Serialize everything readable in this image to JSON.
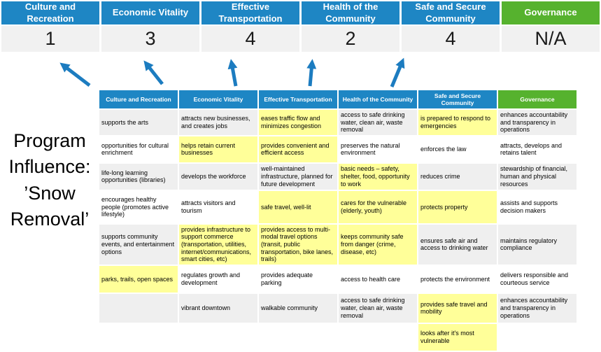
{
  "colors": {
    "blue": "#1e86c4",
    "green": "#56b22e",
    "highlight": "#ffff99",
    "row_alt": "#efefef",
    "score_bg": "#f1f1f1",
    "arrow": "#1c7cc0"
  },
  "program_label": "Program\nInfluence:\n’Snow\nRemoval’",
  "scoreboard": {
    "columns": [
      {
        "label": "Culture and\nRecreation",
        "score": "1",
        "accent": "blue"
      },
      {
        "label": "Economic Vitality",
        "score": "3",
        "accent": "blue"
      },
      {
        "label": "Effective\nTransportation",
        "score": "4",
        "accent": "blue"
      },
      {
        "label": "Health of the\nCommunity",
        "score": "2",
        "accent": "blue"
      },
      {
        "label": "Safe and Secure\nCommunity",
        "score": "4",
        "accent": "blue"
      },
      {
        "label": "Governance",
        "score": "N/A",
        "accent": "green"
      }
    ]
  },
  "table": {
    "headers": [
      {
        "label": "Culture and Recreation",
        "accent": "blue"
      },
      {
        "label": "Economic Vitality",
        "accent": "blue"
      },
      {
        "label": "Effective Transportation",
        "accent": "blue"
      },
      {
        "label": "Health of the Community",
        "accent": "blue"
      },
      {
        "label": "Safe and Secure\nCommunity",
        "accent": "blue"
      },
      {
        "label": "Governance",
        "accent": "green"
      }
    ],
    "rows": [
      [
        {
          "text": "supports the arts"
        },
        {
          "text": "attracts new businesses, and creates jobs"
        },
        {
          "text": "eases traffic flow and minimizes congestion",
          "highlight": true
        },
        {
          "text": "access to safe drinking water, clean air, waste removal"
        },
        {
          "text": "is prepared to respond to emergencies",
          "highlight": true
        },
        {
          "text": "enhances accountability and transparency in operations"
        }
      ],
      [
        {
          "text": "opportunities for cultural enrichment"
        },
        {
          "text": "helps retain current businesses",
          "highlight": true
        },
        {
          "text": "provides convenient and efficient access",
          "highlight": true
        },
        {
          "text": "preserves the natural environment"
        },
        {
          "text": "enforces the law"
        },
        {
          "text": "attracts, develops and retains talent"
        }
      ],
      [
        {
          "text": "life-long learning opportunities (libraries)"
        },
        {
          "text": "develops the workforce"
        },
        {
          "text": "well-maintained infrastructure, planned for future development"
        },
        {
          "text": "basic needs – safety, shelter, food, opportunity to work",
          "highlight": true
        },
        {
          "text": "reduces crime"
        },
        {
          "text": "stewardship of financial, human and physical resources"
        }
      ],
      [
        {
          "text": "encourages healthy people (promotes active lifestyle)"
        },
        {
          "text": "attracts visitors and tourism"
        },
        {
          "text": "safe travel, well-lit",
          "highlight": true
        },
        {
          "text": "cares for the vulnerable (elderly, youth)",
          "highlight": true
        },
        {
          "text": "protects property",
          "highlight": true
        },
        {
          "text": "assists and supports decision makers"
        }
      ],
      [
        {
          "text": "supports community events, and entertainment options"
        },
        {
          "text": "provides infrastructure to support commerce (transportation, utilities, internet/communications, smart cities, etc)",
          "highlight": true
        },
        {
          "text": "provides access to multi-modal travel options (transit, public transportation, bike lanes, trails)",
          "highlight": true
        },
        {
          "text": "keeps community safe from danger (crime, disease, etc)",
          "highlight": true
        },
        {
          "text": "ensures safe air and access to drinking water"
        },
        {
          "text": "maintains regulatory compliance"
        }
      ],
      [
        {
          "text": "parks, trails, open spaces",
          "highlight": true
        },
        {
          "text": "regulates growth and development"
        },
        {
          "text": "provides adequate parking"
        },
        {
          "text": "access to health care"
        },
        {
          "text": "protects the environment"
        },
        {
          "text": "delivers responsible and courteous service"
        }
      ],
      [
        {
          "text": ""
        },
        {
          "text": "vibrant downtown"
        },
        {
          "text": "walkable community"
        },
        {
          "text": "access to safe drinking water, clean air, waste removal"
        },
        {
          "text": "provides safe travel and mobility",
          "highlight": true
        },
        {
          "text": "enhances accountability and transparency in operations"
        }
      ],
      [
        {
          "text": ""
        },
        {
          "text": ""
        },
        {
          "text": ""
        },
        {
          "text": ""
        },
        {
          "text": "looks after it's most vulnerable",
          "highlight": true
        },
        {
          "text": ""
        }
      ]
    ]
  }
}
